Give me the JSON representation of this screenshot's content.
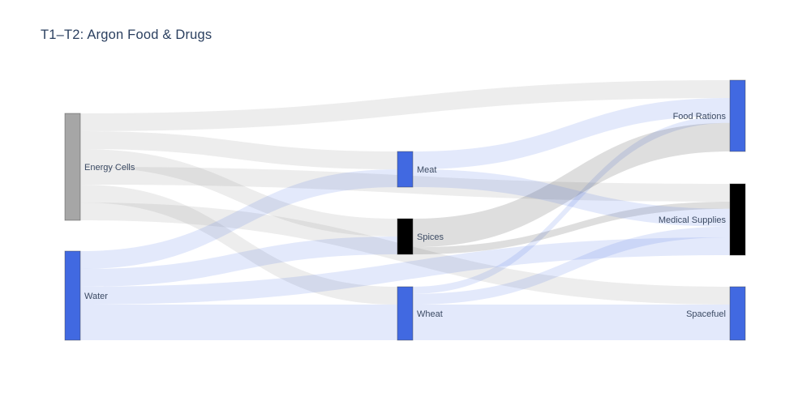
{
  "title": "T1–T2: Argon Food & Drugs",
  "chart_data": {
    "type": "sankey",
    "title": "T1–T2: Argon Food & Drugs",
    "background": "#ffffff",
    "label_color": "#3b4a63",
    "title_color": "#2a3f5f",
    "columns": [
      [
        "Energy Cells",
        "Water"
      ],
      [
        "Meat",
        "Spices",
        "Wheat"
      ],
      [
        "Food Rations",
        "Medical Supplies",
        "Spacefuel"
      ]
    ],
    "nodes": [
      {
        "name": "Energy Cells",
        "color": "#a6a6a6",
        "link_color": "rgba(166,166,166,0.20)",
        "column": 0,
        "total": 30,
        "label_side": "right"
      },
      {
        "name": "Water",
        "color": "#4169e1",
        "link_color": "rgba(65,105,225,0.15)",
        "column": 0,
        "total": 25,
        "label_side": "right"
      },
      {
        "name": "Meat",
        "color": "#4169e1",
        "link_color": "rgba(65,105,225,0.15)",
        "column": 1,
        "total": 10,
        "label_side": "right"
      },
      {
        "name": "Spices",
        "color": "#000000",
        "link_color": "rgba(0,0,0,0.13)",
        "column": 1,
        "total": 10,
        "label_side": "right"
      },
      {
        "name": "Wheat",
        "color": "#4169e1",
        "link_color": "rgba(65,105,225,0.15)",
        "column": 1,
        "total": 15,
        "label_side": "right"
      },
      {
        "name": "Food Rations",
        "color": "#4169e1",
        "link_color": "rgba(65,105,225,0.15)",
        "column": 2,
        "total": 20,
        "label_side": "left"
      },
      {
        "name": "Medical Supplies",
        "color": "#000000",
        "link_color": "rgba(0,0,0,0.13)",
        "column": 2,
        "total": 20,
        "label_side": "left"
      },
      {
        "name": "Spacefuel",
        "color": "#4169e1",
        "link_color": "rgba(65,105,225,0.15)",
        "column": 2,
        "total": 15,
        "label_side": "left"
      }
    ],
    "links": [
      {
        "source": "Energy Cells",
        "target": "Food Rations",
        "value": 5
      },
      {
        "source": "Energy Cells",
        "target": "Meat",
        "value": 5
      },
      {
        "source": "Energy Cells",
        "target": "Spices",
        "value": 5
      },
      {
        "source": "Energy Cells",
        "target": "Medical Supplies",
        "value": 5
      },
      {
        "source": "Energy Cells",
        "target": "Wheat",
        "value": 5
      },
      {
        "source": "Energy Cells",
        "target": "Spacefuel",
        "value": 5
      },
      {
        "source": "Meat",
        "target": "Food Rations",
        "value": 5
      },
      {
        "source": "Wheat",
        "target": "Food Rations",
        "value": 2
      },
      {
        "source": "Spices",
        "target": "Food Rations",
        "value": 8
      },
      {
        "source": "Spices",
        "target": "Medical Supplies",
        "value": 2
      },
      {
        "source": "Meat",
        "target": "Medical Supplies",
        "value": 5
      },
      {
        "source": "Wheat",
        "target": "Medical Supplies",
        "value": 3
      },
      {
        "source": "Water",
        "target": "Meat",
        "value": 5
      },
      {
        "source": "Water",
        "target": "Spices",
        "value": 5
      },
      {
        "source": "Water",
        "target": "Medical Supplies",
        "value": 5
      },
      {
        "source": "Water",
        "target": "Wheat",
        "value": 10
      },
      {
        "source": "Wheat",
        "target": "Spacefuel",
        "value": 10
      }
    ]
  }
}
